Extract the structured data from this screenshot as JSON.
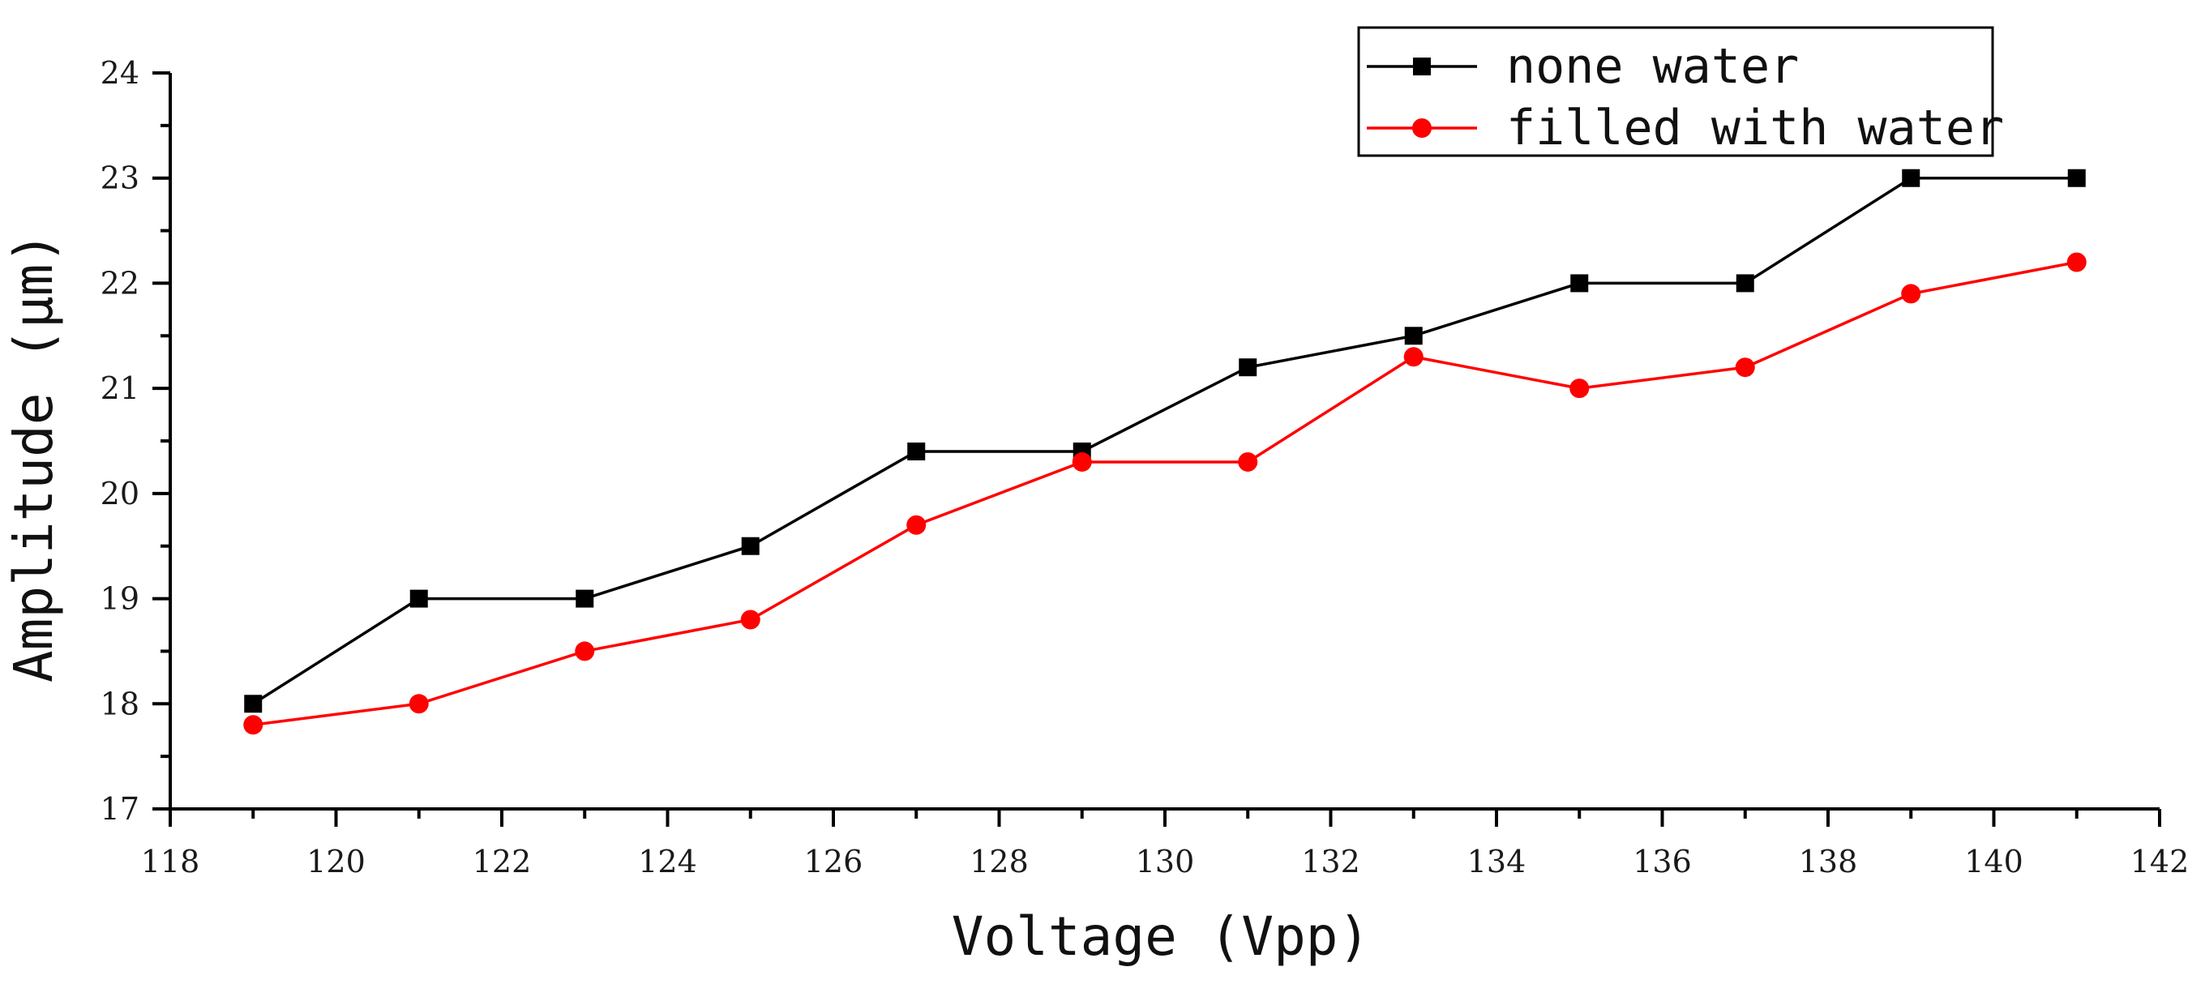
{
  "chart_data": {
    "type": "line",
    "title": "",
    "xlabel": "Voltage (Vpp)",
    "ylabel": "Amplitude (μm)",
    "xlim": [
      118,
      142
    ],
    "ylim": [
      17,
      24
    ],
    "x_ticks": [
      118,
      120,
      122,
      124,
      126,
      128,
      130,
      132,
      134,
      136,
      138,
      140,
      142
    ],
    "y_ticks": [
      17,
      18,
      19,
      20,
      21,
      22,
      23,
      24
    ],
    "x": [
      119,
      121,
      123,
      125,
      127,
      129,
      131,
      133,
      135,
      137,
      139,
      141
    ],
    "grid": false,
    "legend_position": "top-right",
    "series": [
      {
        "name": "none water",
        "color": "#000000",
        "marker": "square",
        "values": [
          18.0,
          19.0,
          19.0,
          19.5,
          20.4,
          20.4,
          21.2,
          21.5,
          22.0,
          22.0,
          23.0,
          23.0
        ]
      },
      {
        "name": "filled with water",
        "color": "#ff0000",
        "marker": "circle",
        "values": [
          17.8,
          18.0,
          18.5,
          18.8,
          19.7,
          20.3,
          20.3,
          21.3,
          21.0,
          21.2,
          21.9,
          22.2
        ]
      }
    ]
  }
}
